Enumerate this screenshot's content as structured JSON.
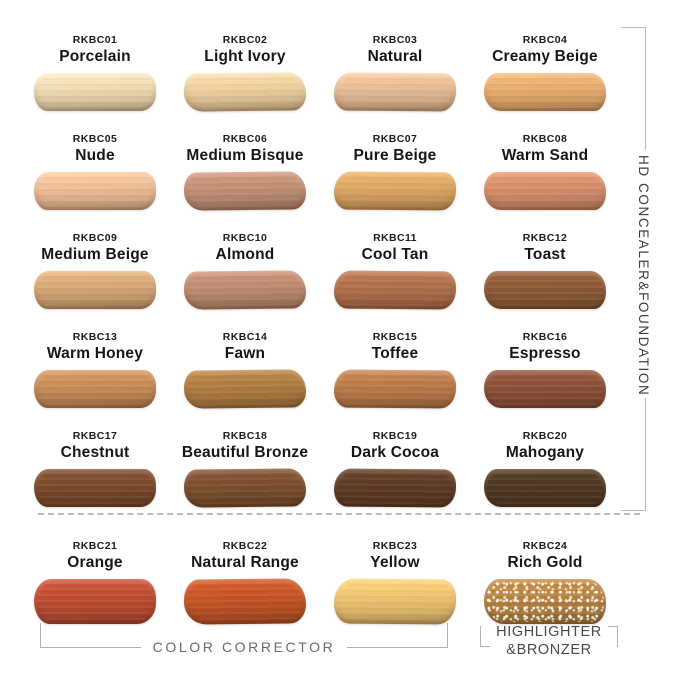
{
  "product": {
    "right_bracket_label": "HD CONCEALER&FOUNDATION",
    "color_corrector_label": "COLOR CORRECTOR",
    "highlighter_label_line1": "HIGHLIGHTER",
    "highlighter_label_line2": "&BRONZER"
  },
  "colors": {
    "background": "#ffffff",
    "label_text": "#161616",
    "bracket_line": "#b0b0b0",
    "divider": "#bcbcbc",
    "bottom_text": "#6a6a6a"
  },
  "swatches": [
    {
      "code": "RKBC01",
      "name": "Porcelain",
      "color": "#F0DBB1"
    },
    {
      "code": "RKBC02",
      "name": "Light Ivory",
      "color": "#EECF9E"
    },
    {
      "code": "RKBC03",
      "name": "Natural",
      "color": "#E8BC95"
    },
    {
      "code": "RKBC04",
      "name": "Creamy Beige",
      "color": "#E7AC6E"
    },
    {
      "code": "RKBC05",
      "name": "Nude",
      "color": "#EFBE97"
    },
    {
      "code": "RKBC06",
      "name": "Medium Bisque",
      "color": "#C28F75"
    },
    {
      "code": "RKBC07",
      "name": "Pure Beige",
      "color": "#DDA662"
    },
    {
      "code": "RKBC08",
      "name": "Warm Sand",
      "color": "#D78E6B"
    },
    {
      "code": "RKBC09",
      "name": "Medium Beige",
      "color": "#D7A876"
    },
    {
      "code": "RKBC10",
      "name": "Almond",
      "color": "#BF8B71"
    },
    {
      "code": "RKBC11",
      "name": "Cool Tan",
      "color": "#B06F4B"
    },
    {
      "code": "RKBC12",
      "name": "Toast",
      "color": "#8E5B36"
    },
    {
      "code": "RKBC13",
      "name": "Warm Honey",
      "color": "#C88D57"
    },
    {
      "code": "RKBC14",
      "name": "Fawn",
      "color": "#B07D41"
    },
    {
      "code": "RKBC15",
      "name": "Toffee",
      "color": "#BB7B4A"
    },
    {
      "code": "RKBC16",
      "name": "Espresso",
      "color": "#8B5138"
    },
    {
      "code": "RKBC17",
      "name": "Chestnut",
      "color": "#7B4A2B"
    },
    {
      "code": "RKBC18",
      "name": "Beautiful Bronze",
      "color": "#7C4E2D"
    },
    {
      "code": "RKBC19",
      "name": "Dark Cocoa",
      "color": "#5E3B24"
    },
    {
      "code": "RKBC20",
      "name": "Mahogany",
      "color": "#4F3722"
    },
    {
      "code": "RKBC21",
      "name": "Orange",
      "color": "#BF4D33"
    },
    {
      "code": "RKBC22",
      "name": "Natural Range",
      "color": "#C55425"
    },
    {
      "code": "RKBC23",
      "name": "Yellow",
      "color": "#EFC471"
    },
    {
      "code": "RKBC24",
      "name": "Rich Gold",
      "color": "#B6823F",
      "sparkle": true
    }
  ]
}
